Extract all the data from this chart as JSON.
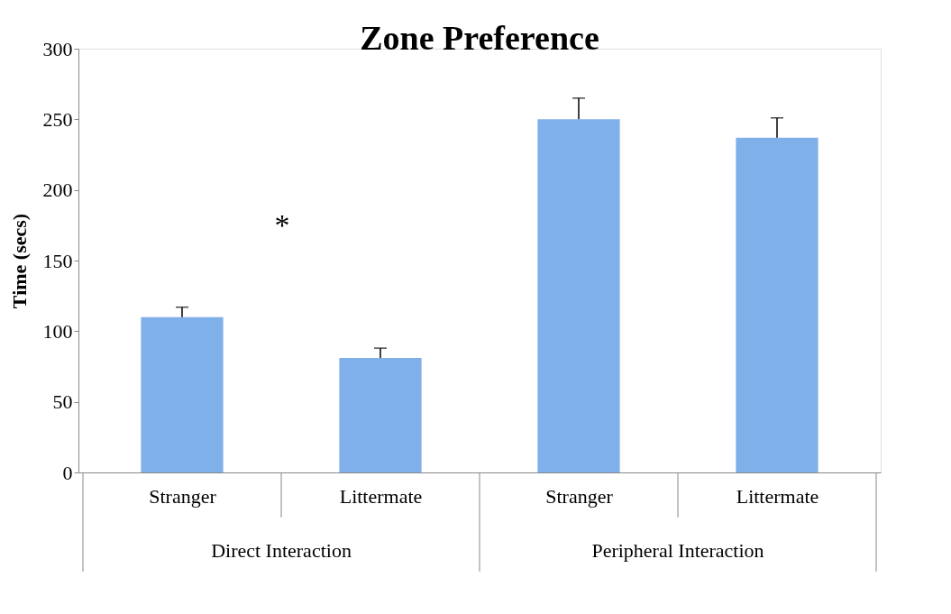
{
  "chart_data": {
    "type": "bar",
    "title": "Zone Preference",
    "ylabel": "Time (secs)",
    "categories": [
      "Stranger",
      "Littermate",
      "Stranger",
      "Littermate"
    ],
    "values": [
      110,
      81,
      250,
      237
    ],
    "errors": [
      [
        110,
        117
      ],
      [
        81,
        88
      ],
      [
        250,
        265
      ],
      [
        237,
        251
      ]
    ],
    "color": "#7fb0ea",
    "ylim": [
      0,
      300
    ],
    "yticks": [
      0,
      50,
      100,
      150,
      200,
      250,
      300
    ],
    "grid": false,
    "annotations": [
      "Direct Interaction",
      "Peripheral Interaction",
      "*"
    ]
  }
}
